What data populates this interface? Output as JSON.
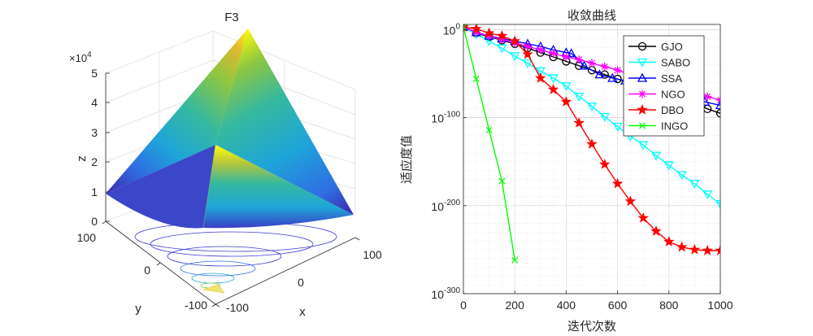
{
  "chart_data": [
    {
      "type": "surface",
      "title": "F3",
      "xlabel": "x",
      "ylabel": "y",
      "zlabel": "z",
      "z_exponent_label": "×10",
      "z_exponent_power": "4",
      "x_ticks": [
        "-100",
        "100"
      ],
      "y_ticks": [
        "100",
        "0",
        "-100"
      ],
      "z_ticks": [
        "0",
        "1",
        "2",
        "3",
        "4",
        "5"
      ],
      "zlim": [
        0,
        50000
      ],
      "colormap": [
        "#3e26a8",
        "#2f6de4",
        "#1ea5d8",
        "#36b99e",
        "#8fc640",
        "#e0b92e",
        "#f9fb0e"
      ]
    },
    {
      "type": "line",
      "title": "收敛曲线",
      "xlabel": "迭代次数",
      "ylabel": "适应度值",
      "x_ticks": [
        "0",
        "200",
        "400",
        "600",
        "800",
        "1000"
      ],
      "y_ticks": [
        {
          "base": "10",
          "exp": "0"
        },
        {
          "base": "10",
          "exp": "-100"
        },
        {
          "base": "10",
          "exp": "-200"
        },
        {
          "base": "10",
          "exp": "-300"
        }
      ],
      "xlim": [
        0,
        1000
      ],
      "y_scale": "log",
      "ylim_exp": [
        -300,
        0
      ],
      "grid": true,
      "legend_position": "top-right",
      "series": [
        {
          "name": "GJO",
          "color": "#000000",
          "marker": "circle",
          "x": [
            0,
            50,
            100,
            150,
            200,
            250,
            300,
            350,
            400,
            450,
            500,
            550,
            600,
            650,
            700,
            750,
            800,
            850,
            900,
            950,
            1000
          ],
          "y_exp": [
            3,
            -4,
            -8,
            -12,
            -16,
            -21,
            -26,
            -31,
            -36,
            -41,
            -46,
            -51,
            -56,
            -61,
            -65,
            -70,
            -75,
            -80,
            -84,
            -90,
            -95
          ]
        },
        {
          "name": "SABO",
          "color": "#00ffff",
          "marker": "triangle-down",
          "x": [
            0,
            50,
            100,
            150,
            200,
            250,
            300,
            350,
            400,
            450,
            500,
            550,
            600,
            650,
            700,
            750,
            800,
            850,
            900,
            950,
            1000
          ],
          "y_exp": [
            3,
            -5,
            -13,
            -21,
            -30,
            -38,
            -47,
            -55,
            -64,
            -76,
            -87,
            -99,
            -110,
            -121,
            -131,
            -143,
            -154,
            -165,
            -175,
            -187,
            -198
          ]
        },
        {
          "name": "SSA",
          "color": "#0000ff",
          "marker": "triangle-up",
          "x": [
            0,
            50,
            100,
            150,
            200,
            250,
            300,
            350,
            400,
            420,
            470,
            530,
            580,
            630,
            700,
            760,
            820,
            880,
            940,
            1000
          ],
          "y_exp": [
            3,
            -3,
            -7,
            -10,
            -13,
            -16,
            -19,
            -23,
            -26,
            -27,
            -41,
            -51,
            -55,
            -58,
            -64,
            -69,
            -73,
            -77,
            -82,
            -86
          ]
        },
        {
          "name": "NGO",
          "color": "#ff00ff",
          "marker": "star",
          "x": [
            0,
            50,
            100,
            150,
            200,
            250,
            300,
            350,
            400,
            450,
            500,
            550,
            600,
            650,
            700,
            750,
            800,
            850,
            900,
            950,
            1000
          ],
          "y_exp": [
            3,
            -3,
            -7,
            -11,
            -15,
            -19,
            -23,
            -27,
            -31,
            -34,
            -38,
            -42,
            -46,
            -51,
            -55,
            -59,
            -63,
            -67,
            -72,
            -76,
            -80
          ]
        },
        {
          "name": "DBO",
          "color": "#ff0000",
          "marker": "pentagram",
          "x": [
            0,
            50,
            100,
            150,
            200,
            250,
            300,
            350,
            400,
            450,
            500,
            550,
            600,
            650,
            700,
            750,
            800,
            850,
            900,
            950,
            1000
          ],
          "y_exp": [
            3,
            1,
            -4,
            -7,
            -13,
            -28,
            -55,
            -68,
            -82,
            -106,
            -130,
            -153,
            -175,
            -195,
            -214,
            -229,
            -241,
            -247,
            -250,
            -251,
            -251
          ]
        },
        {
          "name": "INGO",
          "color": "#00ff00",
          "marker": "x",
          "x": [
            0,
            50,
            100,
            150,
            200
          ],
          "y_exp": [
            3,
            -56,
            -114,
            -172,
            -262
          ]
        }
      ]
    }
  ]
}
